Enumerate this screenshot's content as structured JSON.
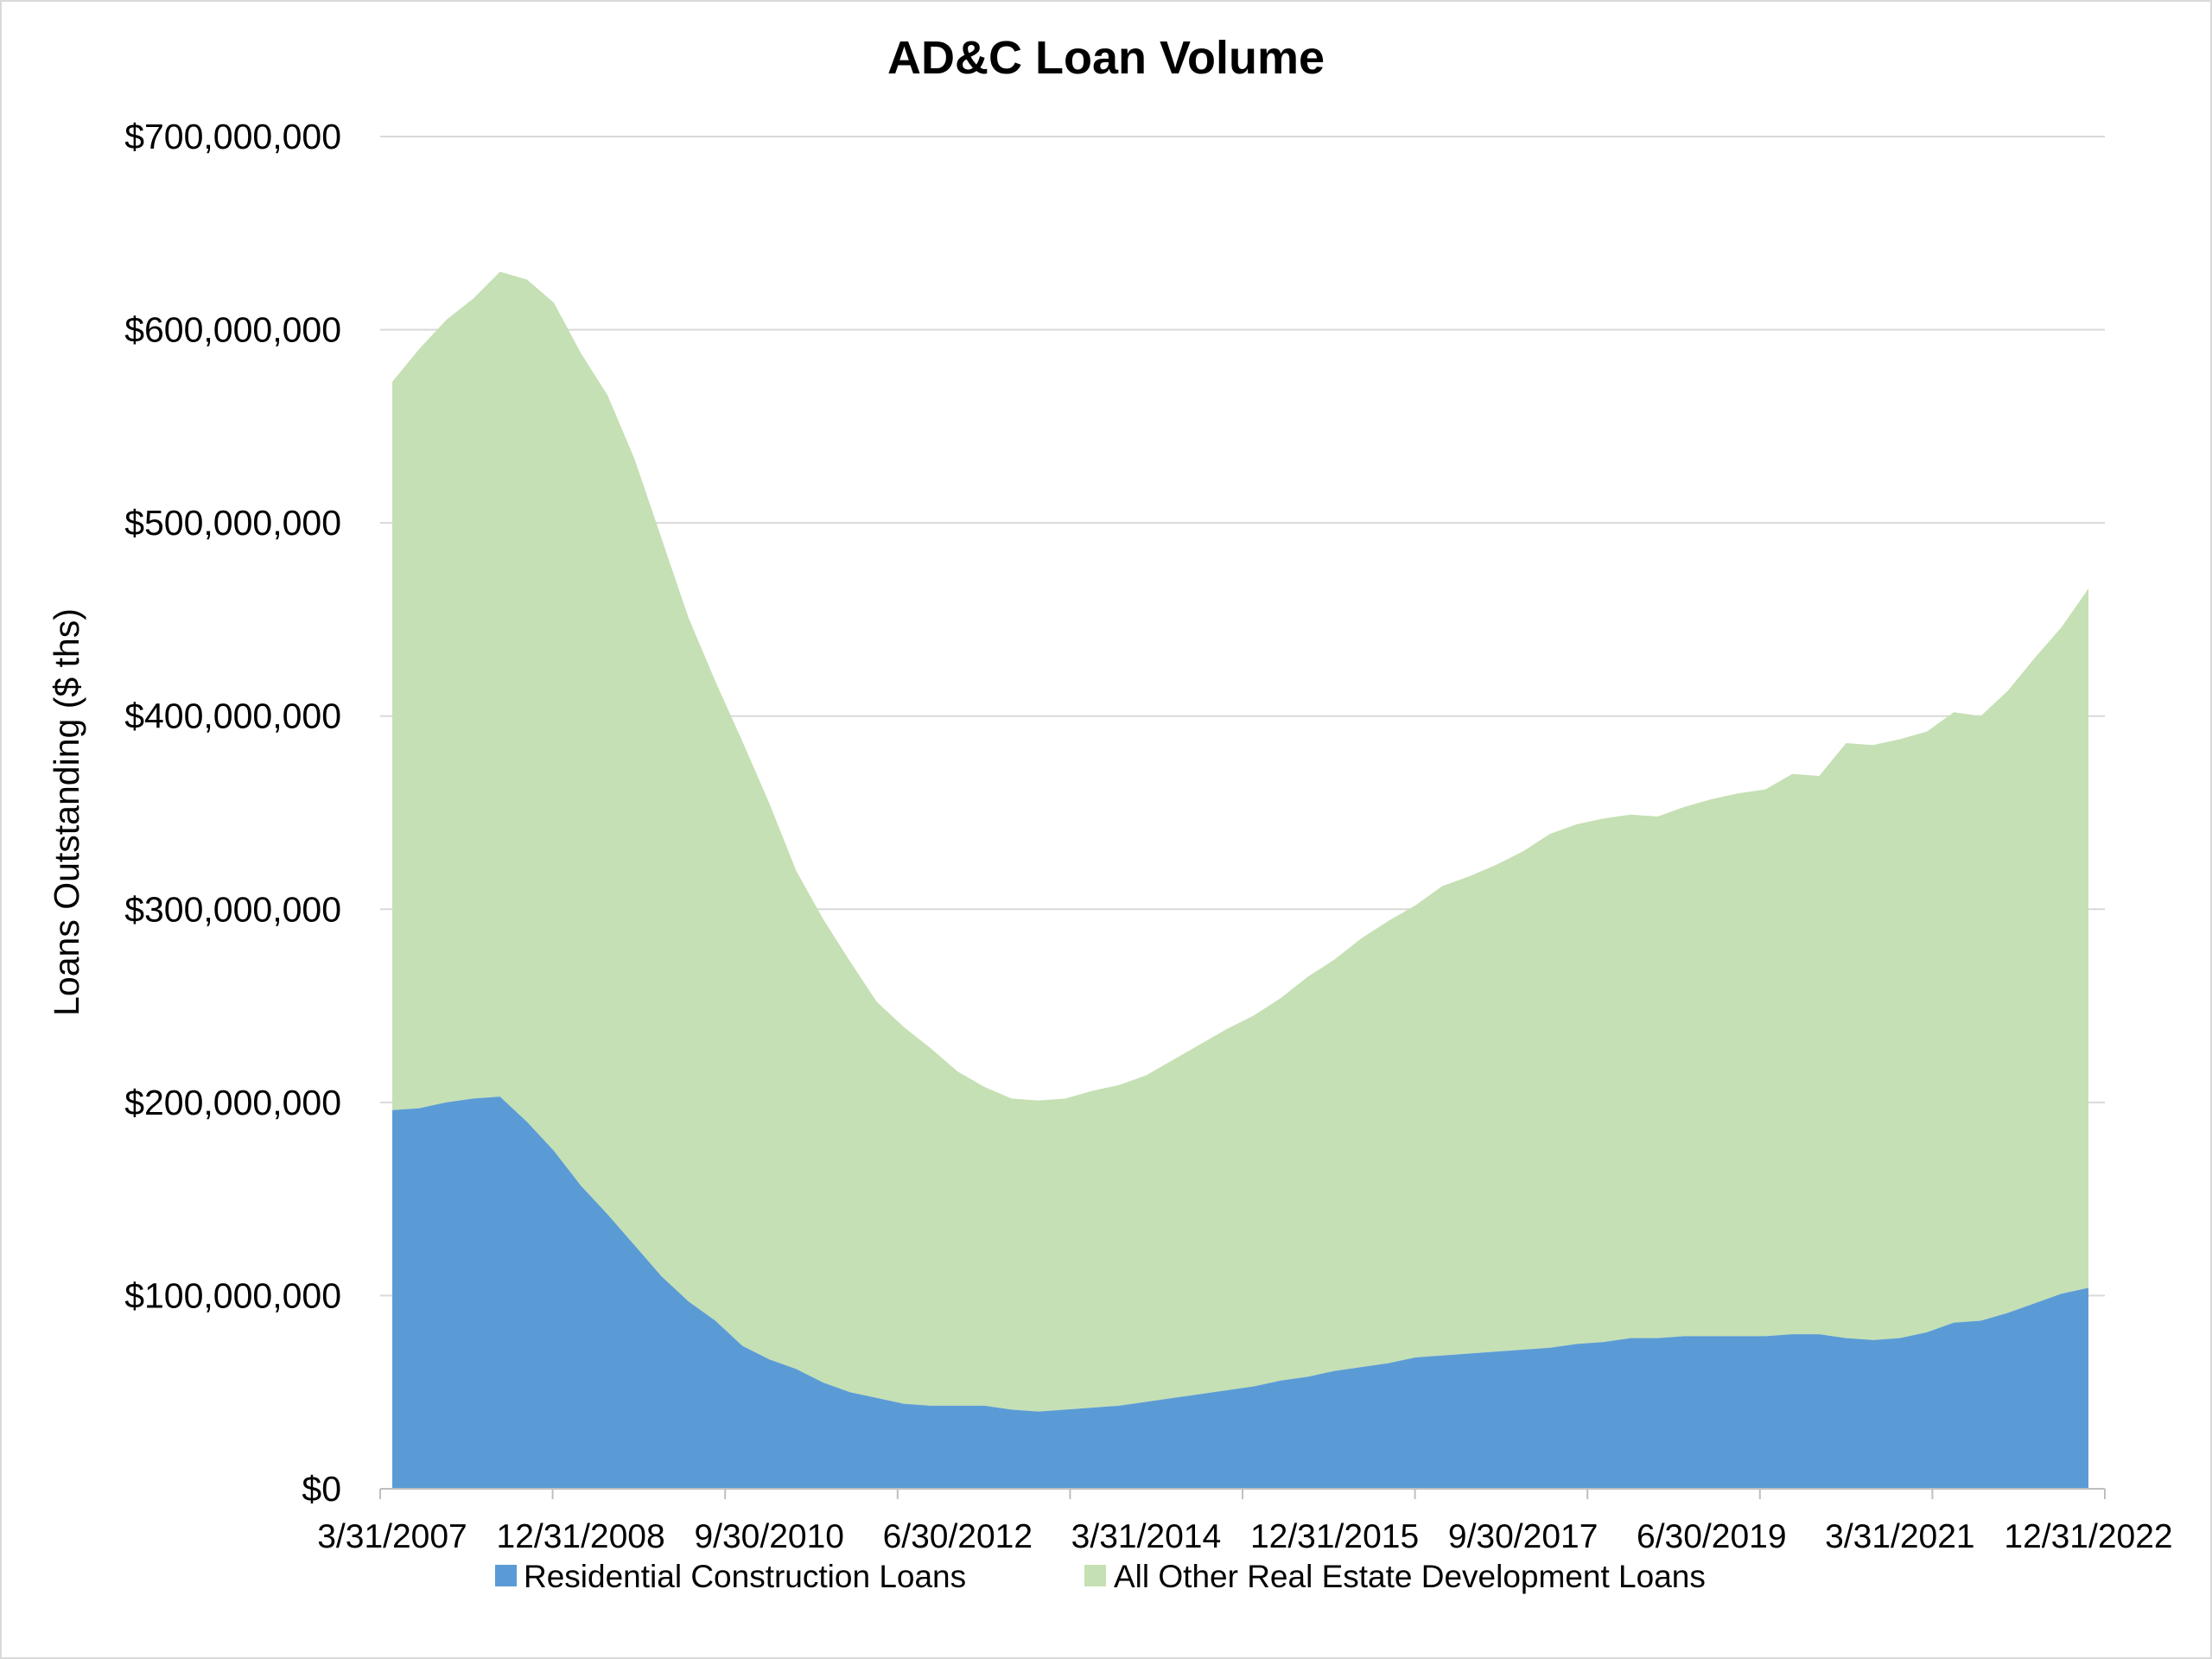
{
  "chart_data": {
    "type": "area",
    "stacked": true,
    "title": "AD&C Loan Volume",
    "xlabel": "",
    "ylabel": "Loans Outstanding ($ ths)",
    "ylim": [
      0,
      700000000
    ],
    "yticks": [
      0,
      100000000,
      200000000,
      300000000,
      400000000,
      500000000,
      600000000,
      700000000
    ],
    "ytick_labels": [
      "$0",
      "$100,000,000",
      "$200,000,000",
      "$300,000,000",
      "$400,000,000",
      "$500,000,000",
      "$600,000,000",
      "$700,000,000"
    ],
    "xtick_labels": [
      "3/31/2007",
      "12/31/2008",
      "9/30/2010",
      "6/30/2012",
      "3/31/2014",
      "12/31/2015",
      "9/30/2017",
      "6/30/2019",
      "3/31/2021",
      "12/31/2022"
    ],
    "x_start": "3/31/2007",
    "x_end": "12/31/2022",
    "frequency": "quarterly",
    "grid": true,
    "legend_position": "bottom",
    "colors": {
      "residential": "#5b9bd5",
      "other": "#c5e0b4",
      "grid": "#d9d9d9",
      "axis": "#bfbfbf"
    },
    "series": [
      {
        "name": "Residential Construction Loans",
        "values": [
          196000000,
          197000000,
          200000000,
          202000000,
          203000000,
          190000000,
          175000000,
          157000000,
          142000000,
          126000000,
          110000000,
          97000000,
          87000000,
          74000000,
          67000000,
          62000000,
          55000000,
          50000000,
          47000000,
          44000000,
          43000000,
          43000000,
          43000000,
          41000000,
          40000000,
          41000000,
          42000000,
          43000000,
          45000000,
          47000000,
          49000000,
          51000000,
          53000000,
          56000000,
          58000000,
          61000000,
          63000000,
          65000000,
          68000000,
          69000000,
          70000000,
          71000000,
          72000000,
          73000000,
          75000000,
          76000000,
          78000000,
          78000000,
          79000000,
          79000000,
          79000000,
          79000000,
          80000000,
          80000000,
          78000000,
          77000000,
          78000000,
          81000000,
          86000000,
          87000000,
          91000000,
          96000000,
          101000000,
          104000000
        ]
      },
      {
        "name": "All Other Real Estate Development Loans",
        "values": [
          377000000,
          393000000,
          405000000,
          414000000,
          427000000,
          436000000,
          439000000,
          431000000,
          424000000,
          407000000,
          382000000,
          354000000,
          331000000,
          313000000,
          288000000,
          258000000,
          240000000,
          223000000,
          205000000,
          195000000,
          185000000,
          173000000,
          165000000,
          161000000,
          161000000,
          161000000,
          164000000,
          166000000,
          169000000,
          175000000,
          181000000,
          187000000,
          192000000,
          198000000,
          207000000,
          213000000,
          222000000,
          229000000,
          234000000,
          243000000,
          247000000,
          252000000,
          258000000,
          266000000,
          269000000,
          271000000,
          271000000,
          270000000,
          274000000,
          278000000,
          281000000,
          283000000,
          290000000,
          289000000,
          308000000,
          308000000,
          310000000,
          311000000,
          316000000,
          313000000,
          322000000,
          334000000,
          345000000,
          362000000
        ]
      }
    ]
  }
}
